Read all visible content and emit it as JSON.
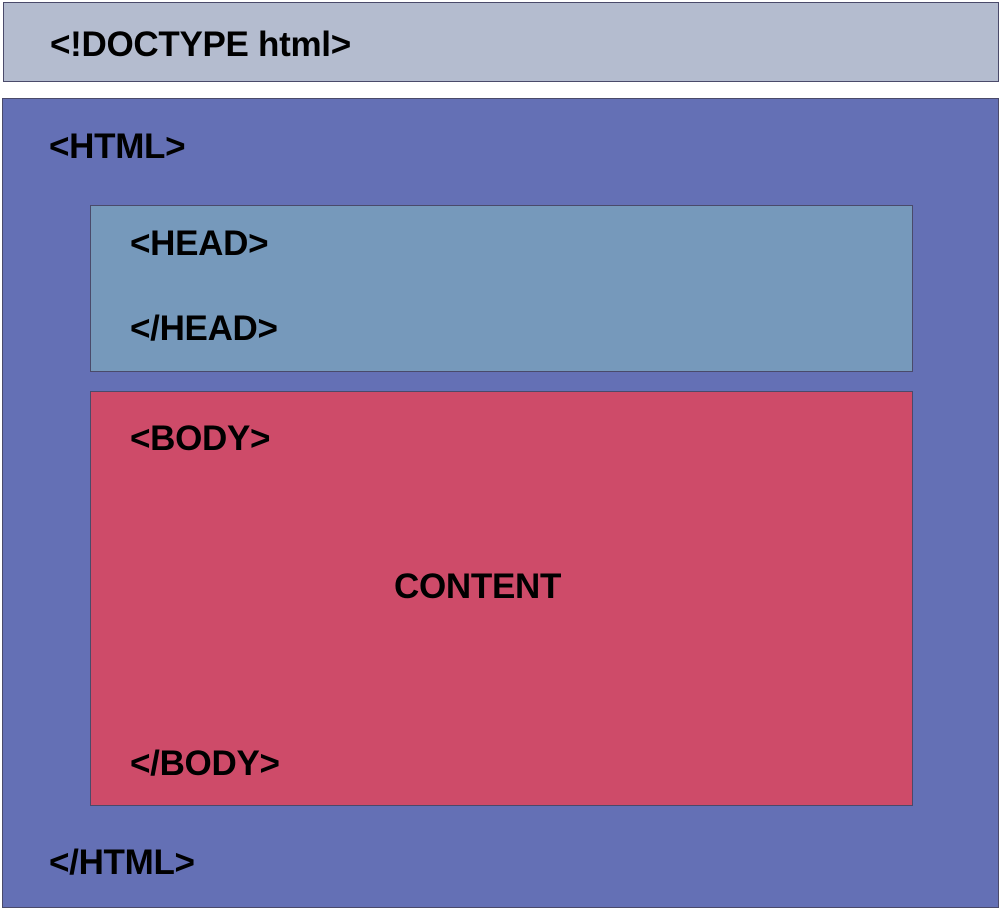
{
  "doctype": {
    "label": "<!DOCTYPE html>",
    "color": "#b4bccf"
  },
  "html": {
    "open": "<HTML>",
    "close": "</HTML>",
    "color": "#6470b5"
  },
  "head": {
    "open": "<HEAD>",
    "close": "</HEAD>",
    "color": "#7699bb"
  },
  "body": {
    "open": "<BODY>",
    "close": "</BODY>",
    "content": "CONTENT",
    "color": "#ce4b69"
  }
}
